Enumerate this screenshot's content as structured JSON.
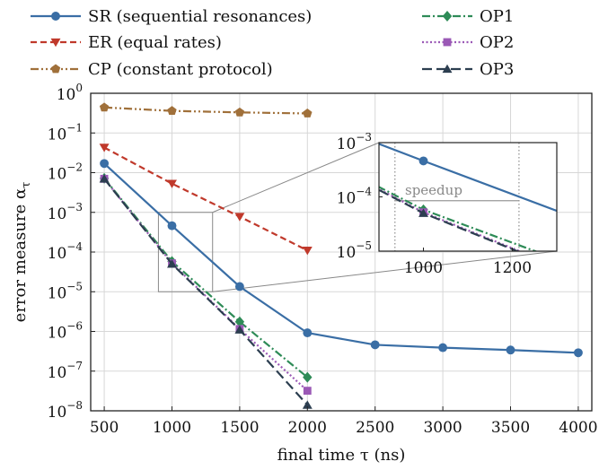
{
  "chart_data": {
    "type": "line",
    "xlabel": "final time τ (ns)",
    "ylabel": "error measure α",
    "ylabel_sub": "τ",
    "yscale": "log",
    "xlim": [
      400,
      4100
    ],
    "ylim": [
      1e-08,
      1
    ],
    "x_ticks": [
      "500",
      "1000",
      "1500",
      "2000",
      "2500",
      "3000",
      "3500",
      "4000"
    ],
    "y_ticks": [
      {
        "base": "10",
        "exp": "0"
      },
      {
        "base": "10",
        "exp": "−1"
      },
      {
        "base": "10",
        "exp": "−2"
      },
      {
        "base": "10",
        "exp": "−3"
      },
      {
        "base": "10",
        "exp": "−4"
      },
      {
        "base": "10",
        "exp": "−5"
      },
      {
        "base": "10",
        "exp": "−6"
      },
      {
        "base": "10",
        "exp": "−7"
      },
      {
        "base": "10",
        "exp": "−8"
      }
    ],
    "series": [
      {
        "name": "SR (sequential resonances)",
        "color": "#3a6ea5",
        "dash": "solid",
        "marker": "circle",
        "x": [
          500,
          1000,
          1500,
          2000,
          2500,
          3000,
          3500,
          4000
        ],
        "y": [
          0.017,
          0.00046,
          1.35e-05,
          9.2e-07,
          4.6e-07,
          3.9e-07,
          3.4e-07,
          2.9e-07
        ]
      },
      {
        "name": "ER (equal rates)",
        "color": "#c0392b",
        "dash": "dashed",
        "marker": "triangle-down",
        "x": [
          500,
          1000,
          1500,
          2000
        ],
        "y": [
          0.043,
          0.0053,
          0.00078,
          0.00011
        ]
      },
      {
        "name": "CP (constant protocol)",
        "color": "#a0703a",
        "dash": "dashdotdot",
        "marker": "pentagon",
        "x": [
          500,
          1000,
          1500,
          2000
        ],
        "y": [
          0.44,
          0.36,
          0.33,
          0.31
        ]
      },
      {
        "name": "OP1",
        "color": "#2e8b57",
        "dash": "dashdot",
        "marker": "diamond",
        "x": [
          500,
          1000,
          1500,
          2000
        ],
        "y": [
          0.0072,
          5.8e-05,
          1.75e-06,
          7e-08
        ]
      },
      {
        "name": "OP2",
        "color": "#9b59b6",
        "dash": "dotted",
        "marker": "square",
        "x": [
          500,
          1000,
          1500,
          2000
        ],
        "y": [
          0.007,
          5.2e-05,
          1.15e-06,
          3.2e-08
        ]
      },
      {
        "name": "OP3",
        "color": "#2c3e50",
        "dash": "longdash",
        "marker": "triangle-up",
        "x": [
          500,
          1000,
          1500,
          2000
        ],
        "y": [
          0.007,
          5e-05,
          1.1e-06,
          1.4e-08
        ]
      }
    ],
    "inset": {
      "xlim": [
        900,
        1300
      ],
      "ylim": [
        1e-05,
        0.001
      ],
      "x_ticks": [
        "1000",
        "1200"
      ],
      "y_ticks": [
        {
          "base": "10",
          "exp": "−3"
        },
        {
          "base": "10",
          "exp": "−4"
        },
        {
          "base": "10",
          "exp": "−5"
        }
      ],
      "vlines_x": [
        936,
        1215
      ],
      "hline_y": 8.5e-05,
      "annotation": "speedup"
    },
    "legend_placement": "top, above axes"
  }
}
